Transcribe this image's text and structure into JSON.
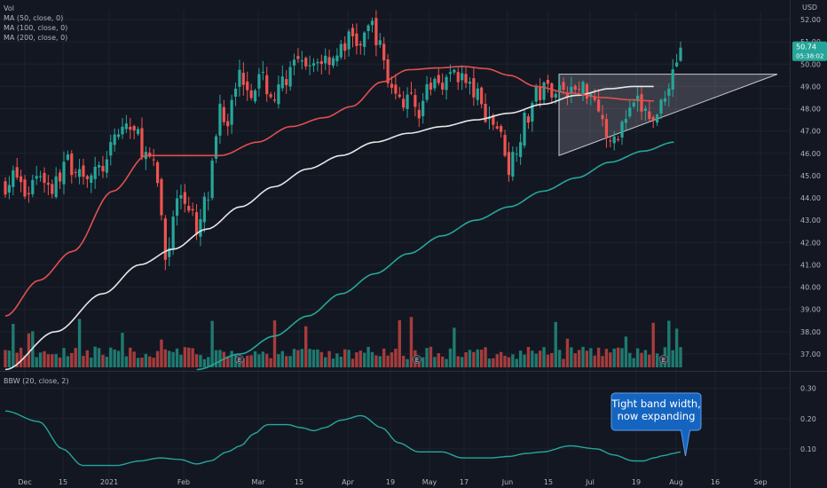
{
  "chart_data": {
    "type": "candlestick",
    "currency": "USD",
    "price_panel": {
      "legend": [
        "Vol",
        "MA (50, close, 0)",
        "MA (100, close, 0)",
        "MA (200, close, 0)"
      ],
      "y_ticks": [
        "52.00",
        "51.00",
        "50.00",
        "49.00",
        "48.00",
        "47.00",
        "46.00",
        "45.00",
        "44.00",
        "43.00",
        "42.00",
        "41.00",
        "40.00",
        "39.00",
        "38.00",
        "37.00"
      ],
      "ylim": [
        36.4,
        52.4
      ],
      "last_price": "50.74",
      "countdown": "05:38:02",
      "candles": {
        "count": 174,
        "anchors": [
          [
            0,
            44.6
          ],
          [
            6,
            45.0
          ],
          [
            12,
            44.2
          ],
          [
            20,
            45.2
          ],
          [
            28,
            44.4
          ],
          [
            36,
            45.6
          ],
          [
            44,
            45.3
          ],
          [
            52,
            45.0
          ],
          [
            60,
            45.5
          ],
          [
            66,
            46.8
          ],
          [
            72,
            47.3
          ],
          [
            78,
            46.8
          ],
          [
            84,
            45.9
          ],
          [
            88,
            45.3
          ],
          [
            92,
            44.3
          ],
          [
            94,
            42.0
          ],
          [
            96,
            41.0
          ],
          [
            100,
            43.3
          ],
          [
            104,
            44.2
          ],
          [
            108,
            43.8
          ],
          [
            112,
            43.3
          ],
          [
            114,
            42.0
          ],
          [
            118,
            43.7
          ],
          [
            122,
            44.1
          ],
          [
            124,
            46.0
          ],
          [
            128,
            48.2
          ],
          [
            132,
            47.4
          ],
          [
            136,
            49.2
          ],
          [
            140,
            49.5
          ],
          [
            146,
            48.9
          ],
          [
            152,
            49.3
          ],
          [
            160,
            48.5
          ],
          [
            168,
            49.5
          ],
          [
            174,
            50.0
          ],
          [
            180,
            49.6
          ],
          [
            186,
            50.2
          ],
          [
            192,
            50.3
          ],
          [
            198,
            50.5
          ],
          [
            206,
            51.2
          ],
          [
            212,
            50.8
          ],
          [
            218,
            51.8
          ],
          [
            224,
            50.6
          ],
          [
            228,
            49.3
          ],
          [
            234,
            48.4
          ],
          [
            240,
            48.4
          ],
          [
            246,
            48.0
          ],
          [
            250,
            48.6
          ],
          [
            256,
            49.3
          ],
          [
            262,
            49.3
          ],
          [
            268,
            49.6
          ],
          [
            272,
            49.4
          ],
          [
            276,
            48.9
          ],
          [
            280,
            48.7
          ],
          [
            284,
            48.0
          ],
          [
            288,
            47.6
          ],
          [
            292,
            47.3
          ],
          [
            296,
            46.6
          ],
          [
            300,
            45.3
          ],
          [
            304,
            46.4
          ],
          [
            310,
            47.5
          ],
          [
            316,
            48.6
          ],
          [
            322,
            48.9
          ],
          [
            330,
            49.0
          ],
          [
            338,
            48.8
          ],
          [
            346,
            48.9
          ],
          [
            352,
            48.5
          ],
          [
            356,
            47.4
          ],
          [
            360,
            46.2
          ],
          [
            364,
            46.9
          ],
          [
            370,
            47.6
          ],
          [
            376,
            48.2
          ],
          [
            382,
            47.8
          ],
          [
            386,
            47.3
          ],
          [
            390,
            48.3
          ],
          [
            394,
            49.0
          ],
          [
            398,
            49.9
          ],
          [
            402,
            50.74
          ]
        ]
      },
      "ma_50": {
        "color": "#e05050",
        "anchors": [
          [
            0,
            38.7
          ],
          [
            20,
            40.3
          ],
          [
            40,
            41.6
          ],
          [
            64,
            44.3
          ],
          [
            84,
            45.9
          ],
          [
            100,
            45.9
          ],
          [
            128,
            45.9
          ],
          [
            150,
            46.5
          ],
          [
            170,
            47.2
          ],
          [
            190,
            47.6
          ],
          [
            206,
            48.1
          ],
          [
            224,
            49.2
          ],
          [
            240,
            49.75
          ],
          [
            258,
            49.83
          ],
          [
            272,
            49.9
          ],
          [
            286,
            49.8
          ],
          [
            300,
            49.5
          ],
          [
            316,
            49.0
          ],
          [
            336,
            48.7
          ],
          [
            356,
            48.5
          ],
          [
            372,
            48.4
          ],
          [
            386,
            48.35
          ]
        ]
      },
      "ma_100": {
        "color": "#e6e6e6",
        "anchors": [
          [
            0,
            36.3
          ],
          [
            30,
            38.0
          ],
          [
            58,
            39.7
          ],
          [
            80,
            41.0
          ],
          [
            100,
            41.7
          ],
          [
            120,
            42.6
          ],
          [
            140,
            43.6
          ],
          [
            160,
            44.5
          ],
          [
            180,
            45.3
          ],
          [
            200,
            45.9
          ],
          [
            220,
            46.5
          ],
          [
            240,
            46.9
          ],
          [
            260,
            47.2
          ],
          [
            280,
            47.5
          ],
          [
            300,
            47.8
          ],
          [
            320,
            48.2
          ],
          [
            340,
            48.6
          ],
          [
            360,
            48.9
          ],
          [
            374,
            49.0
          ],
          [
            386,
            49.0
          ]
        ]
      },
      "ma_200": {
        "color": "#26a69a",
        "anchors": [
          [
            114,
            36.3
          ],
          [
            140,
            37.0
          ],
          [
            160,
            37.8
          ],
          [
            180,
            38.7
          ],
          [
            200,
            39.7
          ],
          [
            220,
            40.6
          ],
          [
            240,
            41.5
          ],
          [
            260,
            42.3
          ],
          [
            280,
            43.0
          ],
          [
            300,
            43.6
          ],
          [
            320,
            44.3
          ],
          [
            340,
            44.9
          ],
          [
            360,
            45.6
          ],
          [
            380,
            46.1
          ],
          [
            398,
            46.5
          ]
        ]
      },
      "triangle": {
        "apex_price": 49.55,
        "upper_price": 49.55,
        "lower_start_price": 45.9
      }
    },
    "bbw_panel": {
      "legend": "BBW (20, close, 2)",
      "y_ticks": [
        "0.30",
        "0.20",
        "0.10"
      ],
      "ylim": [
        0.0,
        0.34
      ],
      "color": "#26a69a",
      "anchors": [
        [
          0,
          0.225
        ],
        [
          20,
          0.19
        ],
        [
          34,
          0.1
        ],
        [
          46,
          0.045
        ],
        [
          66,
          0.045
        ],
        [
          80,
          0.06
        ],
        [
          92,
          0.07
        ],
        [
          104,
          0.065
        ],
        [
          114,
          0.05
        ],
        [
          122,
          0.06
        ],
        [
          132,
          0.09
        ],
        [
          140,
          0.11
        ],
        [
          148,
          0.15
        ],
        [
          156,
          0.18
        ],
        [
          168,
          0.18
        ],
        [
          176,
          0.17
        ],
        [
          184,
          0.16
        ],
        [
          190,
          0.17
        ],
        [
          200,
          0.195
        ],
        [
          212,
          0.21
        ],
        [
          224,
          0.17
        ],
        [
          234,
          0.12
        ],
        [
          246,
          0.09
        ],
        [
          260,
          0.09
        ],
        [
          272,
          0.07
        ],
        [
          288,
          0.07
        ],
        [
          300,
          0.075
        ],
        [
          310,
          0.085
        ],
        [
          320,
          0.09
        ],
        [
          336,
          0.11
        ],
        [
          352,
          0.1
        ],
        [
          362,
          0.08
        ],
        [
          374,
          0.06
        ],
        [
          380,
          0.06
        ],
        [
          386,
          0.07
        ],
        [
          392,
          0.078
        ],
        [
          398,
          0.085
        ],
        [
          402,
          0.09
        ]
      ]
    },
    "x_ticks": [
      "Dec",
      "15",
      "2021",
      "Feb",
      "Mar",
      "15",
      "Apr",
      "19",
      "May",
      "17",
      "Jun",
      "15",
      "Jul",
      "19",
      "Aug",
      "16",
      "Sep"
    ],
    "annotation": [
      "Tight band width,",
      "now expanding"
    ]
  }
}
